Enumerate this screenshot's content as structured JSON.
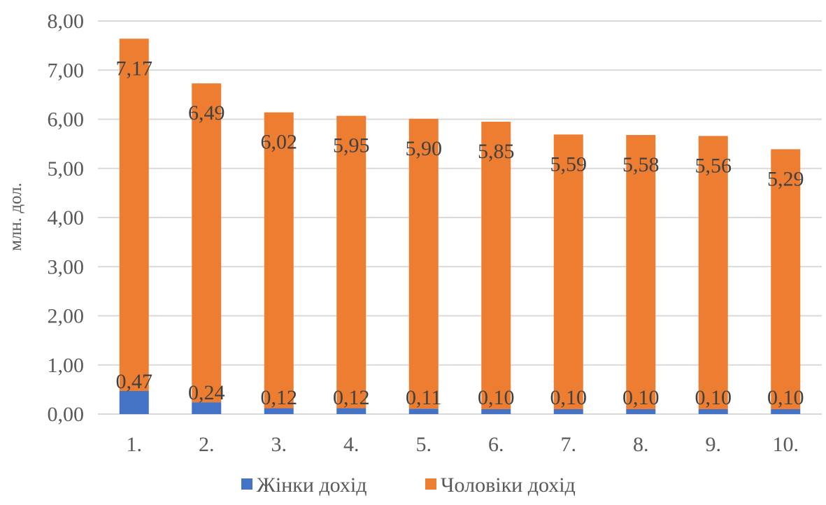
{
  "chart_data": {
    "type": "bar",
    "stacked": true,
    "title": "",
    "xlabel": "",
    "ylabel": "млн. дол.",
    "ylim": [
      0,
      8
    ],
    "ytick_step": 1,
    "ytick_labels": [
      "0,00",
      "1,00",
      "2,00",
      "3,00",
      "4,00",
      "5,00",
      "6,00",
      "7,00",
      "8,00"
    ],
    "grid": true,
    "legend_position": "bottom",
    "categories": [
      "1.",
      "2.",
      "3.",
      "4.",
      "5.",
      "6.",
      "7.",
      "8.",
      "9.",
      "10."
    ],
    "series": [
      {
        "name": "Жінки дохід",
        "color": "#4472c4",
        "values": [
          0.47,
          0.24,
          0.12,
          0.12,
          0.11,
          0.1,
          0.1,
          0.1,
          0.1,
          0.1
        ],
        "labels": [
          "0,47",
          "0,24",
          "0,12",
          "0,12",
          "0,11",
          "0,10",
          "0,10",
          "0,10",
          "0,10",
          "0,10"
        ]
      },
      {
        "name": "Чоловіки дохід",
        "color": "#ed7d31",
        "values": [
          7.17,
          6.49,
          6.02,
          5.95,
          5.9,
          5.85,
          5.59,
          5.58,
          5.56,
          5.29
        ],
        "labels": [
          "7,17",
          "6,49",
          "6,02",
          "5,95",
          "5,90",
          "5,85",
          "5,59",
          "5,58",
          "5,56",
          "5,29"
        ]
      }
    ]
  }
}
